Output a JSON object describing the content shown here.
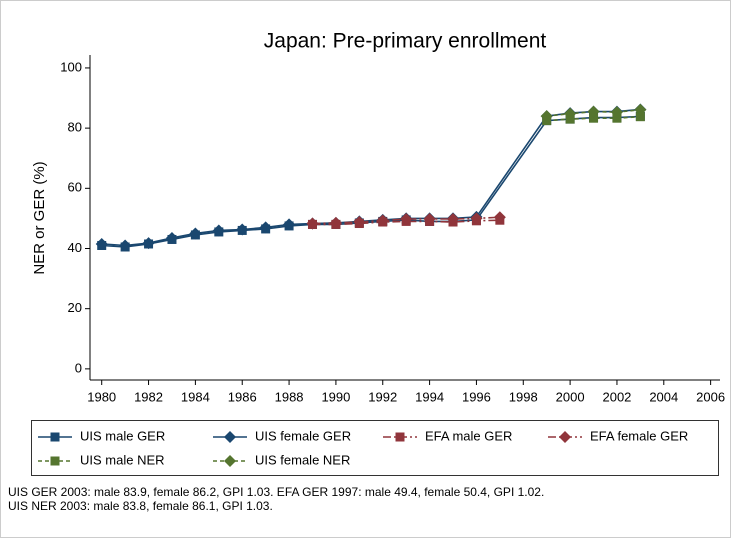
{
  "chart_data": {
    "type": "line",
    "title": "Japan: Pre-primary enrollment",
    "ylabel": "NER or GER (%)",
    "xlim": [
      1979.5,
      2006.4
    ],
    "ylim": [
      -3.7,
      104.3
    ],
    "xticks": [
      1980,
      1982,
      1984,
      1986,
      1988,
      1990,
      1992,
      1994,
      1996,
      1998,
      2000,
      2002,
      2004,
      2006
    ],
    "yticks": [
      0,
      20,
      40,
      60,
      80,
      100
    ],
    "grid": false,
    "series": [
      {
        "name": "UIS male GER",
        "color": "#1a476f",
        "marker": "square",
        "dash": "solid",
        "x": [
          1980,
          1981,
          1982,
          1983,
          1984,
          1985,
          1986,
          1987,
          1988,
          1989,
          1990,
          1991,
          1992,
          1993,
          1994,
          1995,
          1996,
          1999,
          2000,
          2001,
          2002,
          2003
        ],
        "values": [
          41,
          40.5,
          41.5,
          43,
          44.5,
          45.5,
          46,
          46.5,
          47.5,
          48,
          48,
          48.5,
          49,
          49.5,
          49,
          49,
          49.5,
          82.5,
          83,
          83.5,
          83.5,
          83.9
        ]
      },
      {
        "name": "UIS female GER",
        "color": "#1a476f",
        "marker": "diamond",
        "dash": "solid",
        "x": [
          1980,
          1981,
          1982,
          1983,
          1984,
          1985,
          1986,
          1987,
          1988,
          1989,
          1990,
          1991,
          1992,
          1993,
          1994,
          1995,
          1996,
          1999,
          2000,
          2001,
          2002,
          2003
        ],
        "values": [
          41.5,
          41,
          41.8,
          43.5,
          45,
          46,
          46.3,
          47,
          48,
          48.3,
          48.5,
          49,
          49.5,
          50,
          50,
          50,
          50.5,
          84,
          85,
          85.5,
          85.5,
          86.2
        ]
      },
      {
        "name": "EFA male GER",
        "color": "#90353b",
        "marker": "square",
        "dash": "dashdot",
        "x": [
          1989,
          1990,
          1991,
          1992,
          1993,
          1994,
          1995,
          1996,
          1997
        ],
        "values": [
          48,
          48,
          48.3,
          48.8,
          49,
          49,
          48.8,
          49.2,
          49.4
        ]
      },
      {
        "name": "EFA female GER",
        "color": "#90353b",
        "marker": "diamond",
        "dash": "dashdot",
        "x": [
          1989,
          1990,
          1991,
          1992,
          1993,
          1994,
          1995,
          1996,
          1997
        ],
        "values": [
          48.3,
          48.5,
          48.8,
          49.3,
          49.8,
          49.8,
          49.8,
          50,
          50.4
        ]
      },
      {
        "name": "UIS male NER",
        "color": "#55752f",
        "marker": "square",
        "dash": "dash",
        "x": [
          1999,
          2000,
          2001,
          2002,
          2003
        ],
        "values": [
          82.5,
          83,
          83.3,
          83.3,
          83.8
        ]
      },
      {
        "name": "UIS female NER",
        "color": "#55752f",
        "marker": "diamond",
        "dash": "dash",
        "x": [
          1999,
          2000,
          2001,
          2002,
          2003
        ],
        "values": [
          84,
          84.8,
          85.5,
          85.3,
          86.1
        ]
      }
    ],
    "notes": [
      "UIS GER 2003: male 83.9, female 86.2, GPI 1.03. EFA GER 1997: male 49.4, female 50.4, GPI 1.02.",
      "UIS NER 2003: male 83.8, female 86.1, GPI 1.03."
    ]
  }
}
